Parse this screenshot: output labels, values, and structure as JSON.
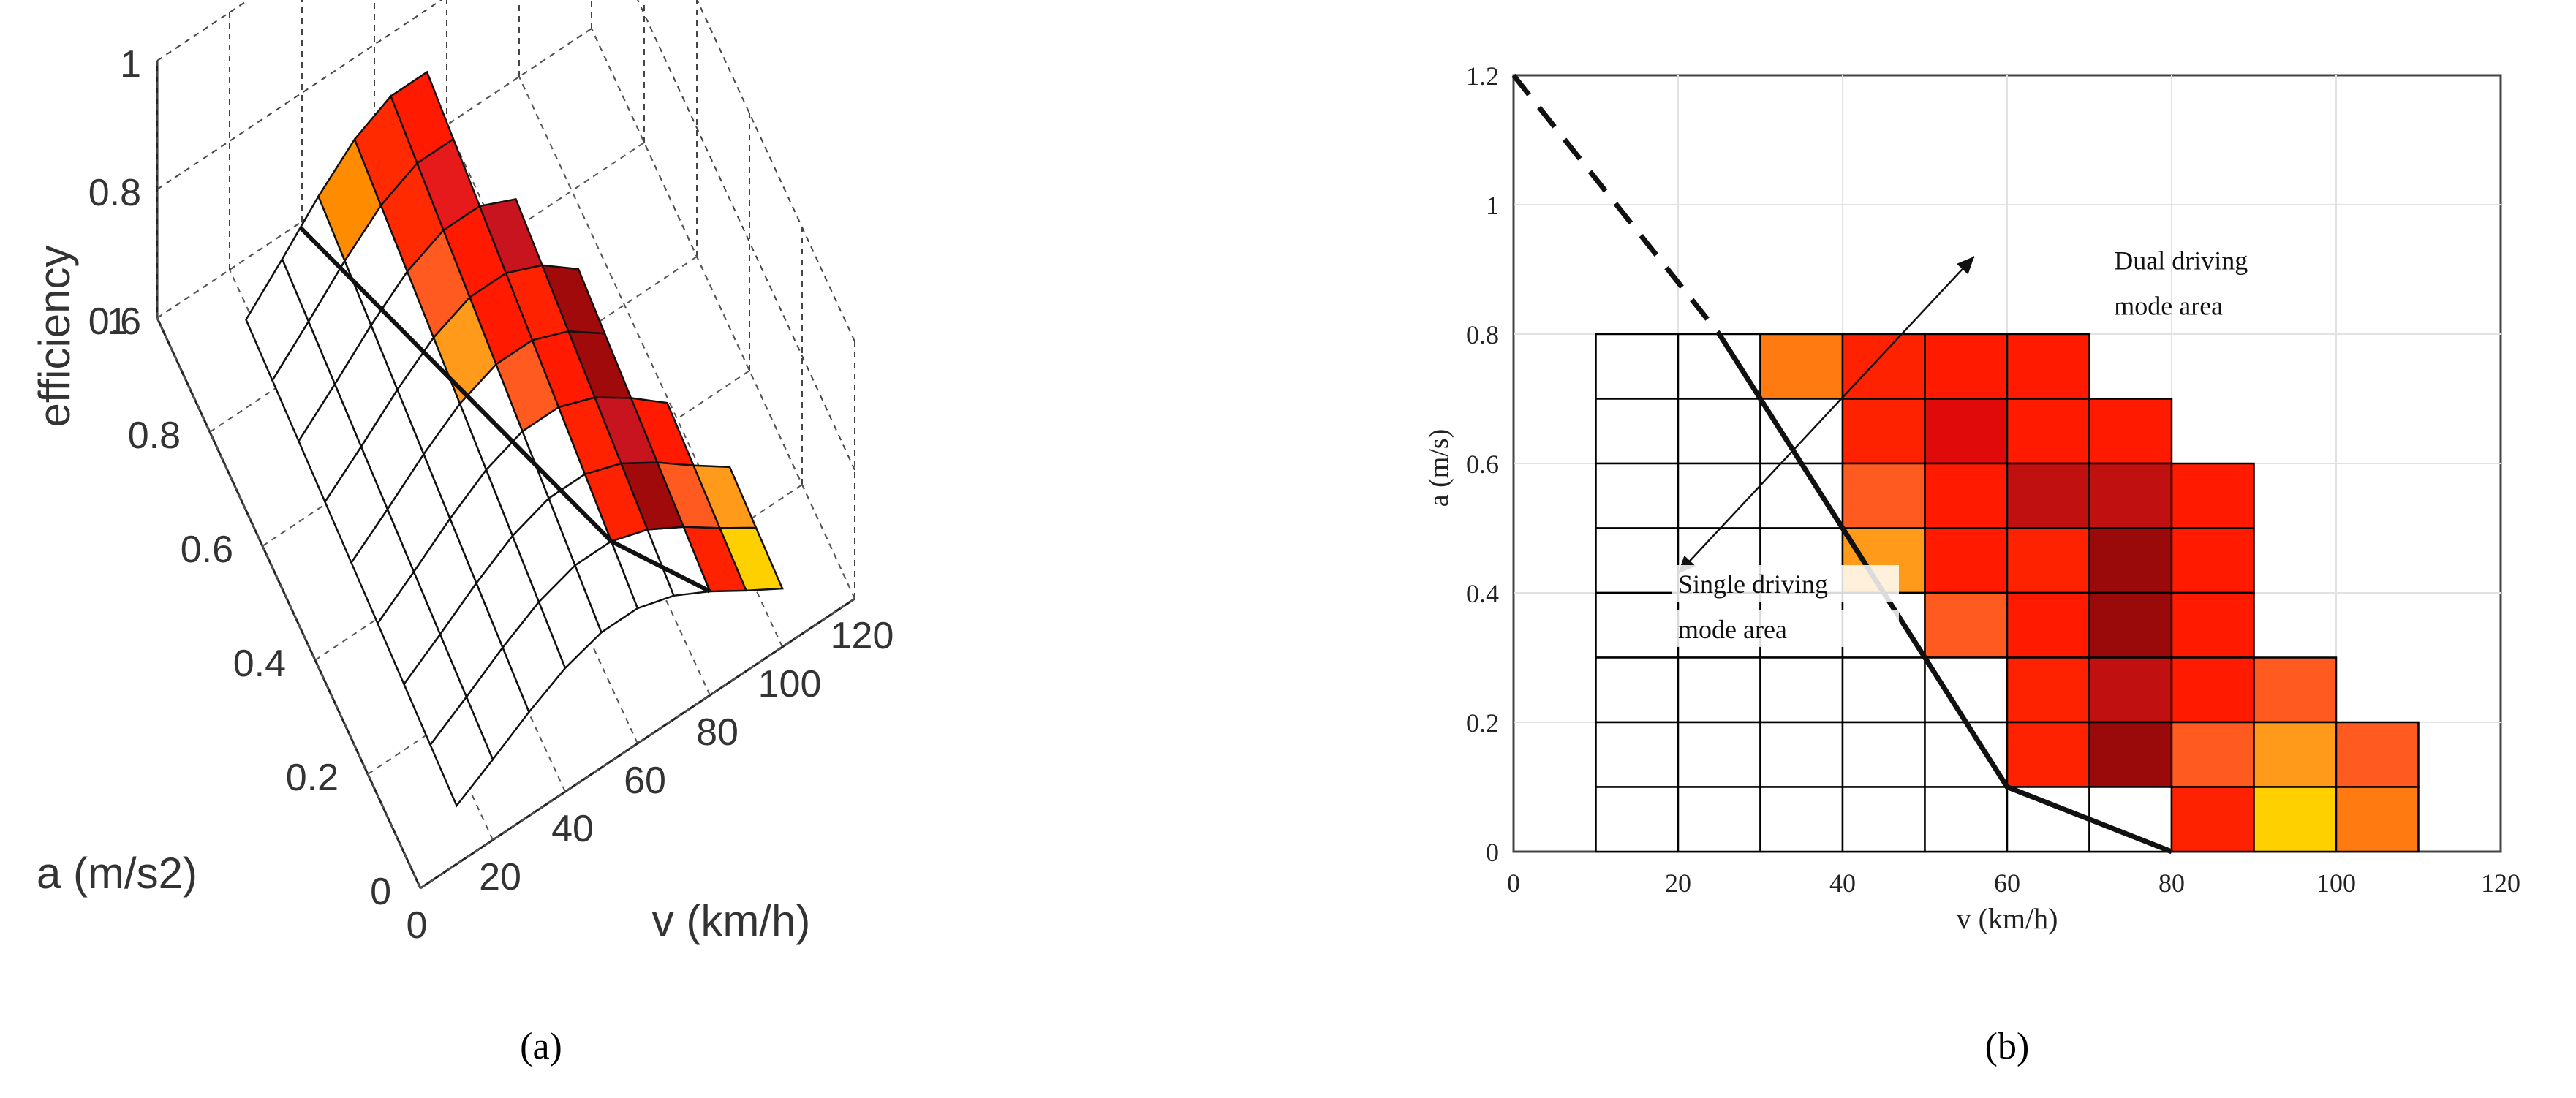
{
  "chart_data": [
    {
      "type": "surface3d",
      "panel_label": "(a)",
      "xlabel": "v (km/h)",
      "ylabel": "a (m/s2)",
      "zlabel": "efficiency",
      "x_ticks": [
        "0",
        "20",
        "40",
        "60",
        "80",
        "100",
        "120"
      ],
      "y_ticks": [
        "0",
        "0.2",
        "0.4",
        "0.6",
        "0.8",
        "1"
      ],
      "z_ticks": [
        "0.6",
        "0.8",
        "1"
      ],
      "xlim": [
        0,
        120
      ],
      "ylim": [
        0,
        1
      ],
      "zlim": [
        0.6,
        1
      ],
      "grid": true,
      "colored_cells": [
        {
          "v": 30,
          "a": 0.75,
          "color": "#ff8c00"
        },
        {
          "v": 40,
          "a": 0.75,
          "color": "#ff2a00"
        },
        {
          "v": 50,
          "a": 0.75,
          "color": "#ff1a00"
        },
        {
          "v": 60,
          "a": 0.75,
          "color": "#ff3300"
        },
        {
          "v": 40,
          "a": 0.65,
          "color": "#ff2a00"
        },
        {
          "v": 50,
          "a": 0.65,
          "color": "#e61a1a"
        },
        {
          "v": 60,
          "a": 0.65,
          "color": "#ff1a00"
        },
        {
          "v": 70,
          "a": 0.65,
          "color": "#ff2200"
        },
        {
          "v": 40,
          "a": 0.55,
          "color": "#ff5a1f"
        },
        {
          "v": 50,
          "a": 0.55,
          "color": "#ff1a00"
        },
        {
          "v": 60,
          "a": 0.55,
          "color": "#c8141e"
        },
        {
          "v": 70,
          "a": 0.55,
          "color": "#c8141e"
        },
        {
          "v": 80,
          "a": 0.55,
          "color": "#ff1a00"
        },
        {
          "v": 40,
          "a": 0.45,
          "color": "#ff9a1a"
        },
        {
          "v": 50,
          "a": 0.45,
          "color": "#ff1a00"
        },
        {
          "v": 60,
          "a": 0.45,
          "color": "#ff2200"
        },
        {
          "v": 70,
          "a": 0.45,
          "color": "#a00a0a"
        },
        {
          "v": 80,
          "a": 0.45,
          "color": "#ff1a00"
        },
        {
          "v": 50,
          "a": 0.35,
          "color": "#ff5a1f"
        },
        {
          "v": 60,
          "a": 0.35,
          "color": "#ff1a00"
        },
        {
          "v": 70,
          "a": 0.35,
          "color": "#a00a0a"
        },
        {
          "v": 80,
          "a": 0.35,
          "color": "#ff1a00"
        },
        {
          "v": 60,
          "a": 0.25,
          "color": "#ff2200"
        },
        {
          "v": 70,
          "a": 0.25,
          "color": "#c8141e"
        },
        {
          "v": 80,
          "a": 0.25,
          "color": "#ff1a00"
        },
        {
          "v": 90,
          "a": 0.25,
          "color": "#ff5a1f"
        },
        {
          "v": 60,
          "a": 0.15,
          "color": "#ff2200"
        },
        {
          "v": 70,
          "a": 0.15,
          "color": "#a00a0a"
        },
        {
          "v": 80,
          "a": 0.15,
          "color": "#ff5a1f"
        },
        {
          "v": 90,
          "a": 0.15,
          "color": "#ff9a1a"
        },
        {
          "v": 100,
          "a": 0.15,
          "color": "#ff5a1f"
        },
        {
          "v": 80,
          "a": 0.05,
          "color": "#ff2200"
        },
        {
          "v": 90,
          "a": 0.05,
          "color": "#ffd000"
        },
        {
          "v": 100,
          "a": 0.05,
          "color": "#ff7a10"
        }
      ]
    },
    {
      "type": "heatmap",
      "panel_label": "(b)",
      "xlabel": "v (km/h)",
      "ylabel": "a (m/s)",
      "x_ticks": [
        "0",
        "20",
        "40",
        "60",
        "80",
        "100",
        "120"
      ],
      "y_ticks": [
        "0",
        "0.2",
        "0.4",
        "0.6",
        "0.8",
        "1",
        "1.2"
      ],
      "xlim": [
        0,
        120
      ],
      "ylim": [
        0,
        1.2
      ],
      "grid": true,
      "cell_size": {
        "v": 10,
        "a": 0.1
      },
      "cells": [
        {
          "v": 10,
          "a": 0.7,
          "color": "#ffffff"
        },
        {
          "v": 20,
          "a": 0.7,
          "color": "#ffffff"
        },
        {
          "v": 30,
          "a": 0.7,
          "color": "#ff7a10"
        },
        {
          "v": 40,
          "a": 0.7,
          "color": "#ff2200"
        },
        {
          "v": 50,
          "a": 0.7,
          "color": "#ff1a00"
        },
        {
          "v": 60,
          "a": 0.7,
          "color": "#ff1a00"
        },
        {
          "v": 10,
          "a": 0.6,
          "color": "#ffffff"
        },
        {
          "v": 20,
          "a": 0.6,
          "color": "#ffffff"
        },
        {
          "v": 30,
          "a": 0.6,
          "color": "#ffffff"
        },
        {
          "v": 40,
          "a": 0.6,
          "color": "#ff2200"
        },
        {
          "v": 50,
          "a": 0.6,
          "color": "#e00a0a"
        },
        {
          "v": 60,
          "a": 0.6,
          "color": "#ff1a00"
        },
        {
          "v": 70,
          "a": 0.6,
          "color": "#ff1a00"
        },
        {
          "v": 10,
          "a": 0.5,
          "color": "#ffffff"
        },
        {
          "v": 20,
          "a": 0.5,
          "color": "#ffffff"
        },
        {
          "v": 30,
          "a": 0.5,
          "color": "#ffffff"
        },
        {
          "v": 40,
          "a": 0.5,
          "color": "#ff5a1f"
        },
        {
          "v": 50,
          "a": 0.5,
          "color": "#ff1a00"
        },
        {
          "v": 60,
          "a": 0.5,
          "color": "#c01010"
        },
        {
          "v": 70,
          "a": 0.5,
          "color": "#c01010"
        },
        {
          "v": 80,
          "a": 0.5,
          "color": "#ff1a00"
        },
        {
          "v": 10,
          "a": 0.4,
          "color": "#ffffff"
        },
        {
          "v": 20,
          "a": 0.4,
          "color": "#ffffff"
        },
        {
          "v": 30,
          "a": 0.4,
          "color": "#ffffff"
        },
        {
          "v": 40,
          "a": 0.4,
          "color": "#ff9a1a"
        },
        {
          "v": 50,
          "a": 0.4,
          "color": "#ff1a00"
        },
        {
          "v": 60,
          "a": 0.4,
          "color": "#ff2200"
        },
        {
          "v": 70,
          "a": 0.4,
          "color": "#9a0a0a"
        },
        {
          "v": 80,
          "a": 0.4,
          "color": "#ff1a00"
        },
        {
          "v": 10,
          "a": 0.3,
          "color": "#ffffff"
        },
        {
          "v": 20,
          "a": 0.3,
          "color": "#ffffff"
        },
        {
          "v": 30,
          "a": 0.3,
          "color": "#ffffff"
        },
        {
          "v": 40,
          "a": 0.3,
          "color": "#ffffff"
        },
        {
          "v": 50,
          "a": 0.3,
          "color": "#ff5a1f"
        },
        {
          "v": 60,
          "a": 0.3,
          "color": "#ff1a00"
        },
        {
          "v": 70,
          "a": 0.3,
          "color": "#9a0a0a"
        },
        {
          "v": 80,
          "a": 0.3,
          "color": "#ff1a00"
        },
        {
          "v": 10,
          "a": 0.2,
          "color": "#ffffff"
        },
        {
          "v": 20,
          "a": 0.2,
          "color": "#ffffff"
        },
        {
          "v": 30,
          "a": 0.2,
          "color": "#ffffff"
        },
        {
          "v": 40,
          "a": 0.2,
          "color": "#ffffff"
        },
        {
          "v": 50,
          "a": 0.2,
          "color": "#ffffff"
        },
        {
          "v": 60,
          "a": 0.2,
          "color": "#ff2200"
        },
        {
          "v": 70,
          "a": 0.2,
          "color": "#c01010"
        },
        {
          "v": 80,
          "a": 0.2,
          "color": "#ff1a00"
        },
        {
          "v": 90,
          "a": 0.2,
          "color": "#ff5a1f"
        },
        {
          "v": 10,
          "a": 0.1,
          "color": "#ffffff"
        },
        {
          "v": 20,
          "a": 0.1,
          "color": "#ffffff"
        },
        {
          "v": 30,
          "a": 0.1,
          "color": "#ffffff"
        },
        {
          "v": 40,
          "a": 0.1,
          "color": "#ffffff"
        },
        {
          "v": 50,
          "a": 0.1,
          "color": "#ffffff"
        },
        {
          "v": 60,
          "a": 0.1,
          "color": "#ff2200"
        },
        {
          "v": 70,
          "a": 0.1,
          "color": "#9a0a0a"
        },
        {
          "v": 80,
          "a": 0.1,
          "color": "#ff5a1f"
        },
        {
          "v": 90,
          "a": 0.1,
          "color": "#ff9a1a"
        },
        {
          "v": 100,
          "a": 0.1,
          "color": "#ff5a1f"
        },
        {
          "v": 10,
          "a": 0.0,
          "color": "#ffffff"
        },
        {
          "v": 20,
          "a": 0.0,
          "color": "#ffffff"
        },
        {
          "v": 30,
          "a": 0.0,
          "color": "#ffffff"
        },
        {
          "v": 40,
          "a": 0.0,
          "color": "#ffffff"
        },
        {
          "v": 50,
          "a": 0.0,
          "color": "#ffffff"
        },
        {
          "v": 60,
          "a": 0.0,
          "color": "#ffffff"
        },
        {
          "v": 70,
          "a": 0.0,
          "color": "#ffffff"
        },
        {
          "v": 80,
          "a": 0.0,
          "color": "#ff2200"
        },
        {
          "v": 90,
          "a": 0.0,
          "color": "#ffd000"
        },
        {
          "v": 100,
          "a": 0.0,
          "color": "#ff7a10"
        }
      ],
      "boundary_solid": [
        [
          25,
          0.8
        ],
        [
          60,
          0.1
        ],
        [
          80,
          0
        ]
      ],
      "boundary_dashed": [
        [
          0,
          1.2
        ],
        [
          25,
          0.8
        ]
      ],
      "arrow": {
        "from": [
          20,
          0.43
        ],
        "to": [
          56,
          0.92
        ]
      },
      "annotations": [
        {
          "text": "Dual driving",
          "v": 73,
          "a": 0.9
        },
        {
          "text": "mode area",
          "v": 73,
          "a": 0.83
        },
        {
          "text": "Single driving",
          "v": 20,
          "a": 0.4
        },
        {
          "text": "mode area",
          "v": 20,
          "a": 0.33
        }
      ]
    }
  ]
}
